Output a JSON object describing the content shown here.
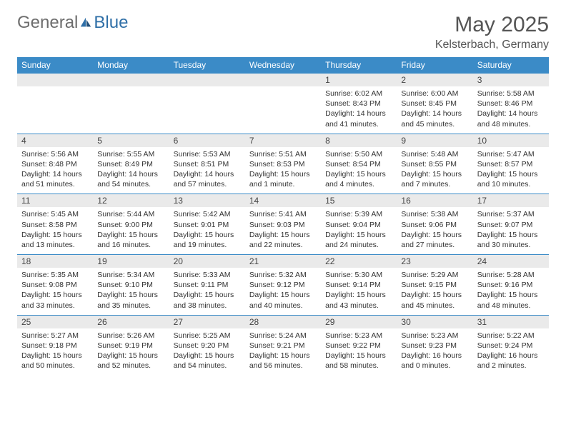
{
  "brand": {
    "general": "General",
    "blue": "Blue"
  },
  "header": {
    "title": "May 2025",
    "location": "Kelsterbach, Germany"
  },
  "colors": {
    "header_bg": "#3b8bc7",
    "header_text": "#ffffff",
    "daynum_bg": "#eaeaea",
    "border": "#3b8bc7",
    "text": "#333333"
  },
  "day_headers": [
    "Sunday",
    "Monday",
    "Tuesday",
    "Wednesday",
    "Thursday",
    "Friday",
    "Saturday"
  ],
  "weeks": [
    {
      "nums": [
        "",
        "",
        "",
        "",
        "1",
        "2",
        "3"
      ],
      "details": [
        "",
        "",
        "",
        "",
        "Sunrise: 6:02 AM\nSunset: 8:43 PM\nDaylight: 14 hours and 41 minutes.",
        "Sunrise: 6:00 AM\nSunset: 8:45 PM\nDaylight: 14 hours and 45 minutes.",
        "Sunrise: 5:58 AM\nSunset: 8:46 PM\nDaylight: 14 hours and 48 minutes."
      ]
    },
    {
      "nums": [
        "4",
        "5",
        "6",
        "7",
        "8",
        "9",
        "10"
      ],
      "details": [
        "Sunrise: 5:56 AM\nSunset: 8:48 PM\nDaylight: 14 hours and 51 minutes.",
        "Sunrise: 5:55 AM\nSunset: 8:49 PM\nDaylight: 14 hours and 54 minutes.",
        "Sunrise: 5:53 AM\nSunset: 8:51 PM\nDaylight: 14 hours and 57 minutes.",
        "Sunrise: 5:51 AM\nSunset: 8:53 PM\nDaylight: 15 hours and 1 minute.",
        "Sunrise: 5:50 AM\nSunset: 8:54 PM\nDaylight: 15 hours and 4 minutes.",
        "Sunrise: 5:48 AM\nSunset: 8:55 PM\nDaylight: 15 hours and 7 minutes.",
        "Sunrise: 5:47 AM\nSunset: 8:57 PM\nDaylight: 15 hours and 10 minutes."
      ]
    },
    {
      "nums": [
        "11",
        "12",
        "13",
        "14",
        "15",
        "16",
        "17"
      ],
      "details": [
        "Sunrise: 5:45 AM\nSunset: 8:58 PM\nDaylight: 15 hours and 13 minutes.",
        "Sunrise: 5:44 AM\nSunset: 9:00 PM\nDaylight: 15 hours and 16 minutes.",
        "Sunrise: 5:42 AM\nSunset: 9:01 PM\nDaylight: 15 hours and 19 minutes.",
        "Sunrise: 5:41 AM\nSunset: 9:03 PM\nDaylight: 15 hours and 22 minutes.",
        "Sunrise: 5:39 AM\nSunset: 9:04 PM\nDaylight: 15 hours and 24 minutes.",
        "Sunrise: 5:38 AM\nSunset: 9:06 PM\nDaylight: 15 hours and 27 minutes.",
        "Sunrise: 5:37 AM\nSunset: 9:07 PM\nDaylight: 15 hours and 30 minutes."
      ]
    },
    {
      "nums": [
        "18",
        "19",
        "20",
        "21",
        "22",
        "23",
        "24"
      ],
      "details": [
        "Sunrise: 5:35 AM\nSunset: 9:08 PM\nDaylight: 15 hours and 33 minutes.",
        "Sunrise: 5:34 AM\nSunset: 9:10 PM\nDaylight: 15 hours and 35 minutes.",
        "Sunrise: 5:33 AM\nSunset: 9:11 PM\nDaylight: 15 hours and 38 minutes.",
        "Sunrise: 5:32 AM\nSunset: 9:12 PM\nDaylight: 15 hours and 40 minutes.",
        "Sunrise: 5:30 AM\nSunset: 9:14 PM\nDaylight: 15 hours and 43 minutes.",
        "Sunrise: 5:29 AM\nSunset: 9:15 PM\nDaylight: 15 hours and 45 minutes.",
        "Sunrise: 5:28 AM\nSunset: 9:16 PM\nDaylight: 15 hours and 48 minutes."
      ]
    },
    {
      "nums": [
        "25",
        "26",
        "27",
        "28",
        "29",
        "30",
        "31"
      ],
      "details": [
        "Sunrise: 5:27 AM\nSunset: 9:18 PM\nDaylight: 15 hours and 50 minutes.",
        "Sunrise: 5:26 AM\nSunset: 9:19 PM\nDaylight: 15 hours and 52 minutes.",
        "Sunrise: 5:25 AM\nSunset: 9:20 PM\nDaylight: 15 hours and 54 minutes.",
        "Sunrise: 5:24 AM\nSunset: 9:21 PM\nDaylight: 15 hours and 56 minutes.",
        "Sunrise: 5:23 AM\nSunset: 9:22 PM\nDaylight: 15 hours and 58 minutes.",
        "Sunrise: 5:23 AM\nSunset: 9:23 PM\nDaylight: 16 hours and 0 minutes.",
        "Sunrise: 5:22 AM\nSunset: 9:24 PM\nDaylight: 16 hours and 2 minutes."
      ]
    }
  ]
}
